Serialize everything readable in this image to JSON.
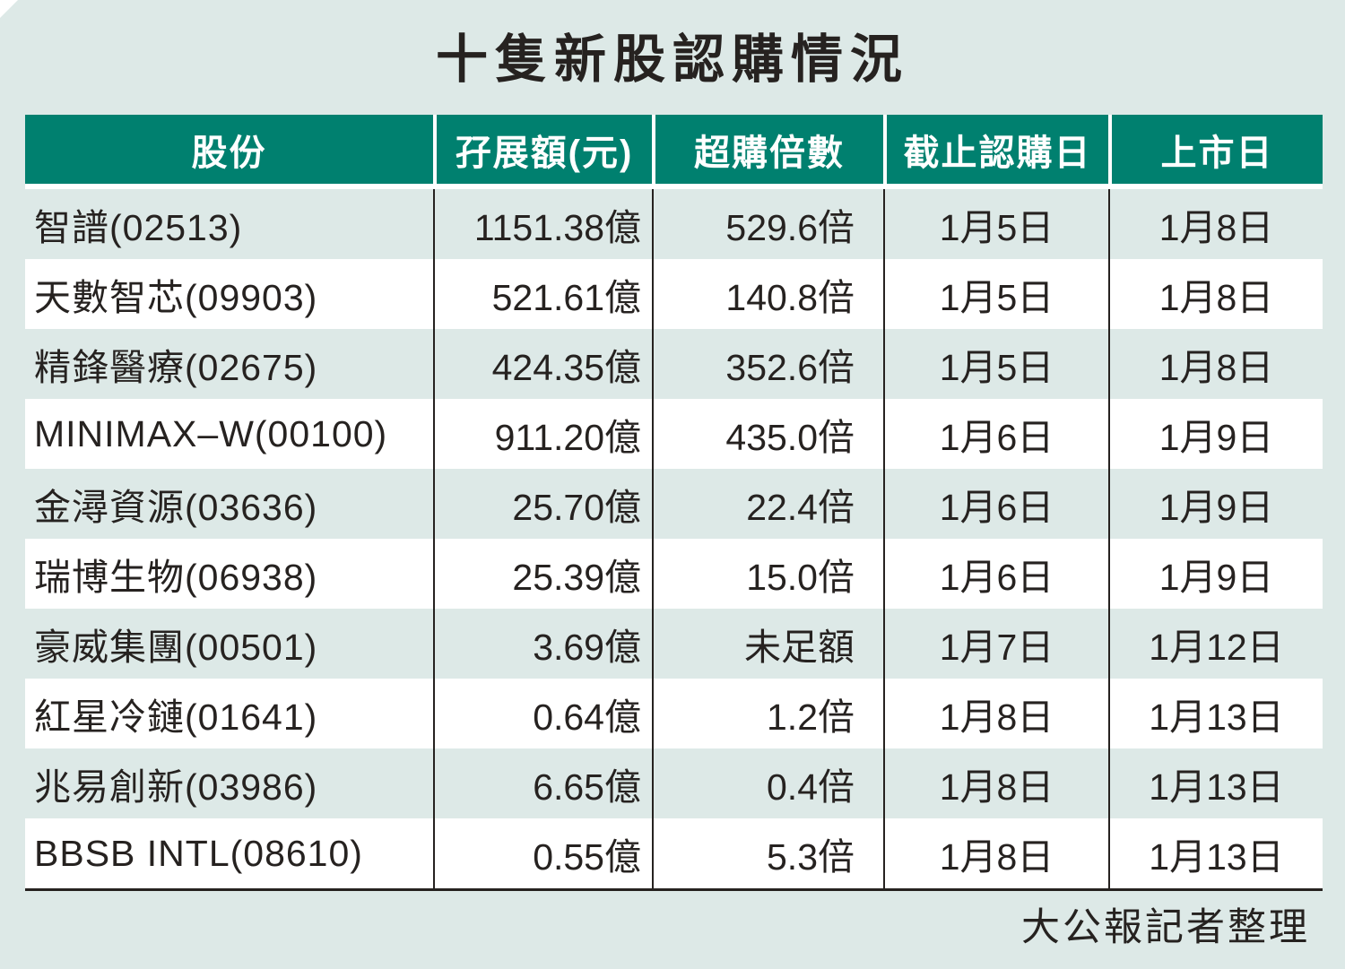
{
  "chart_data": {
    "type": "table",
    "title": "十隻新股認購情況",
    "columns": [
      "股份",
      "孖展額(元)",
      "超購倍數",
      "截止認購日",
      "上市日"
    ],
    "rows": [
      [
        "智譜(02513)",
        "1151.38億",
        "529.6倍",
        "1月5日",
        "1月8日"
      ],
      [
        "天數智芯(09903)",
        "521.61億",
        "140.8倍",
        "1月5日",
        "1月8日"
      ],
      [
        "精鋒醫療(02675)",
        "424.35億",
        "352.6倍",
        "1月5日",
        "1月8日"
      ],
      [
        "MINIMAX–W(00100)",
        "911.20億",
        "435.0倍",
        "1月6日",
        "1月9日"
      ],
      [
        "金潯資源(03636)",
        "25.70億",
        "22.4倍",
        "1月6日",
        "1月9日"
      ],
      [
        "瑞博生物(06938)",
        "25.39億",
        "15.0倍",
        "1月6日",
        "1月9日"
      ],
      [
        "豪威集團(00501)",
        "3.69億",
        "未足額",
        "1月7日",
        "1月12日"
      ],
      [
        "紅星冷鏈(01641)",
        "0.64億",
        "1.2倍",
        "1月8日",
        "1月13日"
      ],
      [
        "兆易創新(03986)",
        "6.65億",
        "0.4倍",
        "1月8日",
        "1月13日"
      ],
      [
        "BBSB INTL(08610)",
        "0.55億",
        "5.3倍",
        "1月8日",
        "1月13日"
      ]
    ],
    "source": "大公報記者整理",
    "layout_hints": {
      "row_striping": "alternating light-teal and white",
      "numeric_columns_alignment": "right",
      "date_columns_alignment": "center"
    }
  },
  "colors": {
    "header_bg": "#00806f",
    "page_bg": "#dde9e7",
    "row_white": "#ffffff",
    "text": "#262220"
  }
}
